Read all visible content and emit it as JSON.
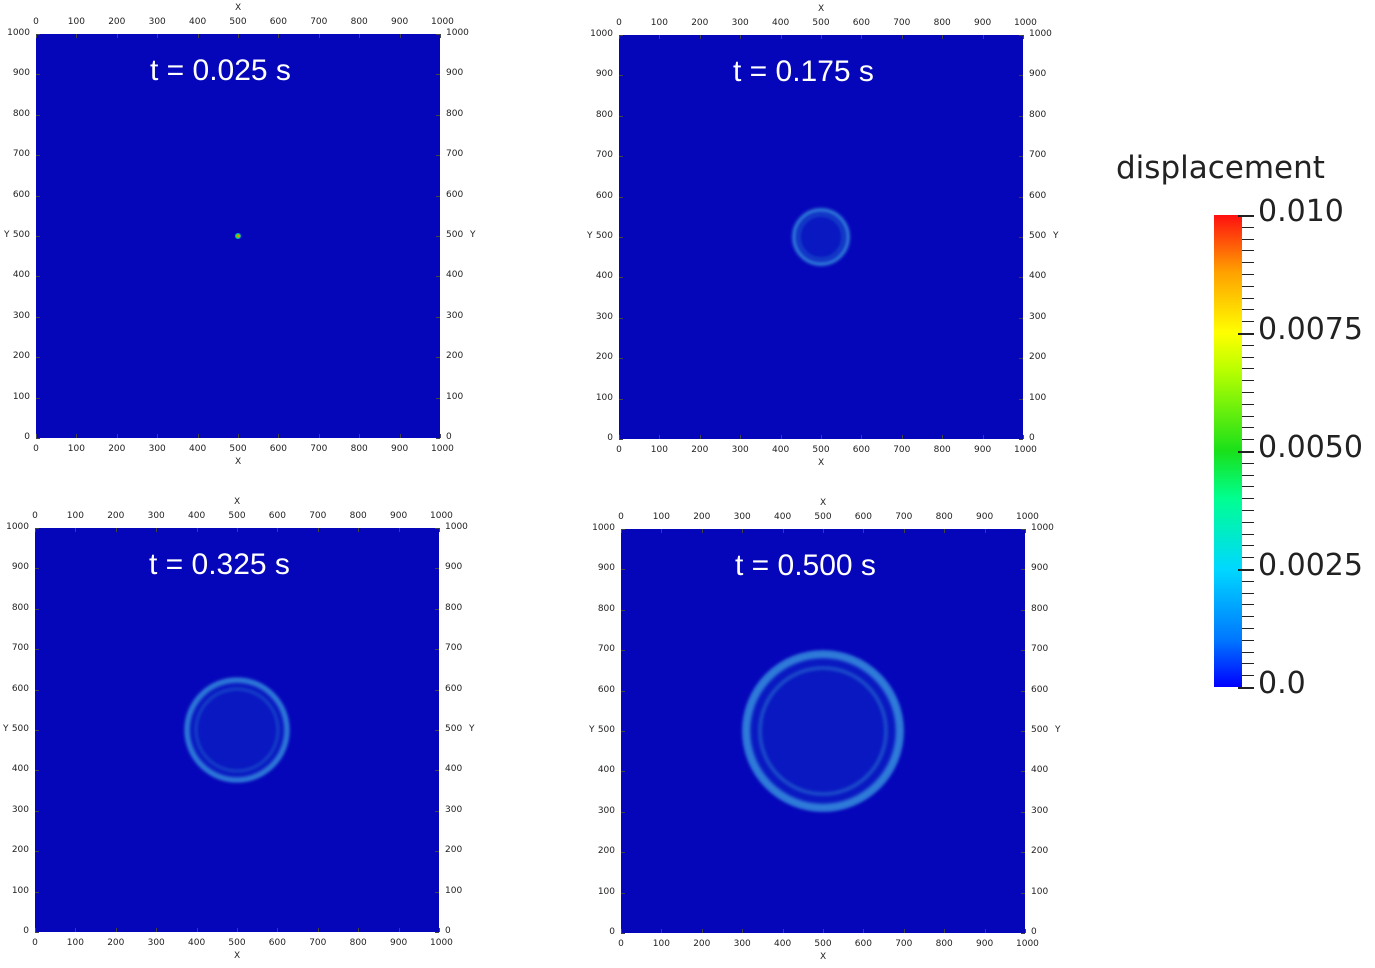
{
  "panels": [
    {
      "time_label": "t = 0.025 s"
    },
    {
      "time_label": "t = 0.175 s"
    },
    {
      "time_label": "t = 0.325 s"
    },
    {
      "time_label": "t = 0.500 s"
    }
  ],
  "colorbar": {
    "title": "displacement",
    "labels": [
      "0.010",
      "0.0075",
      "0.0050",
      "0.0025",
      "0.0"
    ]
  },
  "colors": {
    "background_field": "#0505b9",
    "ring": "#2f7bd9"
  },
  "chart_data": [
    {
      "type": "heatmap",
      "title": "t = 0.025 s",
      "xlabel": "X",
      "ylabel": "Y",
      "xlim": [
        0,
        1000
      ],
      "ylim": [
        0,
        1000
      ],
      "xticks": [
        0,
        100,
        200,
        300,
        400,
        500,
        600,
        700,
        800,
        900,
        1000
      ],
      "yticks": [
        0,
        100,
        200,
        300,
        400,
        500,
        600,
        700,
        800,
        900,
        1000
      ],
      "features": [
        {
          "kind": "peak",
          "center": [
            500,
            500
          ],
          "radius": 15,
          "value": 0.01
        }
      ]
    },
    {
      "type": "heatmap",
      "title": "t = 0.175 s",
      "xlabel": "X",
      "ylabel": "Y",
      "xlim": [
        0,
        1000
      ],
      "ylim": [
        0,
        1000
      ],
      "xticks": [
        0,
        100,
        200,
        300,
        400,
        500,
        600,
        700,
        800,
        900,
        1000
      ],
      "yticks": [
        0,
        100,
        200,
        300,
        400,
        500,
        600,
        700,
        800,
        900,
        1000
      ],
      "features": [
        {
          "kind": "ring",
          "center": [
            500,
            500
          ],
          "radius": 70,
          "value": 0.002
        }
      ]
    },
    {
      "type": "heatmap",
      "title": "t = 0.325 s",
      "xlabel": "X",
      "ylabel": "Y",
      "xlim": [
        0,
        1000
      ],
      "ylim": [
        0,
        1000
      ],
      "xticks": [
        0,
        100,
        200,
        300,
        400,
        500,
        600,
        700,
        800,
        900,
        1000
      ],
      "yticks": [
        0,
        100,
        200,
        300,
        400,
        500,
        600,
        700,
        800,
        900,
        1000
      ],
      "features": [
        {
          "kind": "ring",
          "center": [
            500,
            500
          ],
          "radius": 130,
          "value": 0.0015
        }
      ]
    },
    {
      "type": "heatmap",
      "title": "t = 0.500 s",
      "xlabel": "X",
      "ylabel": "Y",
      "xlim": [
        0,
        1000
      ],
      "ylim": [
        0,
        1000
      ],
      "xticks": [
        0,
        100,
        200,
        300,
        400,
        500,
        600,
        700,
        800,
        900,
        1000
      ],
      "yticks": [
        0,
        100,
        200,
        300,
        400,
        500,
        600,
        700,
        800,
        900,
        1000
      ],
      "features": [
        {
          "kind": "ring",
          "center": [
            500,
            500
          ],
          "radius": 200,
          "value": 0.001
        }
      ]
    }
  ]
}
